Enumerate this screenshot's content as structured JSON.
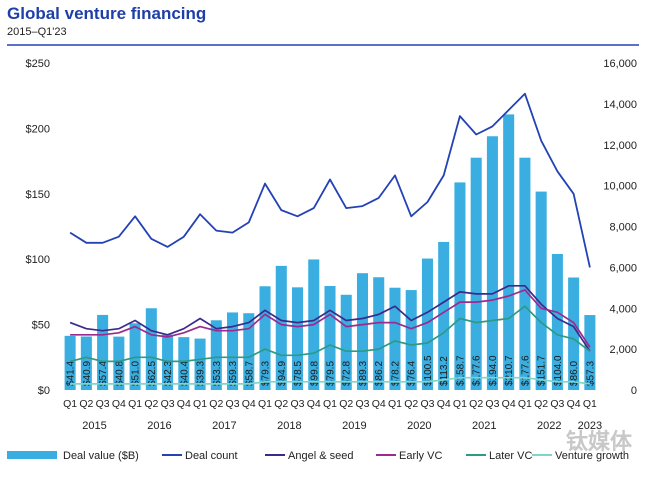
{
  "header": {
    "title": "Global venture financing",
    "subtitle": "2015–Q1'23"
  },
  "watermark": "钛媒体",
  "colors": {
    "title": "#1f3fa8",
    "bars": "#3aaee0",
    "deal_count": "#2342b5",
    "angel_seed": "#3b2a8c",
    "early_vc": "#9b2b8f",
    "later_vc": "#2c9a84",
    "venture_growth": "#7fd6c8",
    "rule": "#2342b5"
  },
  "chart_data": {
    "type": "bar",
    "categories": [
      "Q1",
      "Q2",
      "Q3",
      "Q4",
      "Q1",
      "Q2",
      "Q3",
      "Q4",
      "Q1",
      "Q2",
      "Q3",
      "Q4",
      "Q1",
      "Q2",
      "Q3",
      "Q4",
      "Q1",
      "Q2",
      "Q3",
      "Q4",
      "Q1",
      "Q2",
      "Q3",
      "Q4",
      "Q1",
      "Q2",
      "Q3",
      "Q4",
      "Q1",
      "Q2",
      "Q3",
      "Q4",
      "Q1"
    ],
    "years": [
      {
        "label": "2015",
        "start": 0,
        "end": 3
      },
      {
        "label": "2016",
        "start": 4,
        "end": 7
      },
      {
        "label": "2017",
        "start": 8,
        "end": 11
      },
      {
        "label": "2018",
        "start": 12,
        "end": 15
      },
      {
        "label": "2019",
        "start": 16,
        "end": 19
      },
      {
        "label": "2020",
        "start": 20,
        "end": 23
      },
      {
        "label": "2021",
        "start": 24,
        "end": 27
      },
      {
        "label": "2022",
        "start": 28,
        "end": 31
      },
      {
        "label": "2023",
        "start": 32,
        "end": 32
      }
    ],
    "left_axis": {
      "ylim": [
        0,
        250
      ],
      "ticks": [
        0,
        50,
        100,
        150,
        200,
        250
      ],
      "tick_labels": [
        "$0",
        "$50",
        "$100",
        "$150",
        "$200",
        "$250"
      ]
    },
    "right_axis": {
      "ylim": [
        0,
        16000
      ],
      "ticks": [
        0,
        2000,
        4000,
        6000,
        8000,
        10000,
        12000,
        14000,
        16000
      ],
      "tick_labels": [
        "0",
        "2,000",
        "4,000",
        "6,000",
        "8,000",
        "10,000",
        "12,000",
        "14,000",
        "16,000"
      ]
    },
    "series": [
      {
        "name": "Deal value ($B)",
        "kind": "bar",
        "axis": "left",
        "values": [
          41.4,
          40.9,
          57.4,
          40.8,
          51.0,
          62.5,
          42.3,
          40.4,
          39.3,
          53.3,
          59.3,
          58.7,
          79.3,
          94.9,
          78.5,
          99.8,
          79.5,
          72.8,
          89.3,
          86.2,
          78.2,
          76.4,
          100.5,
          113.2,
          158.7,
          177.6,
          194.0,
          210.7,
          177.6,
          151.7,
          104.0,
          86.0,
          57.3
        ],
        "labels": [
          "$41.4",
          "$40.9",
          "$57.4",
          "$40.8",
          "$51.0",
          "$62.5",
          "$42.3",
          "$40.4",
          "$39.3",
          "$53.3",
          "$59.3",
          "$58.7",
          "$79.3",
          "$94.9",
          "$78.5",
          "$99.8",
          "$79.5",
          "$72.8",
          "$89.3",
          "$86.2",
          "$78.2",
          "$76.4",
          "$100.5",
          "$113.2",
          "$158.7",
          "$177.6",
          "$194.0",
          "$210.7",
          "$177.6",
          "$151.7",
          "$104.0",
          "$86.0",
          "$57.3"
        ]
      },
      {
        "name": "Deal count",
        "kind": "line",
        "axis": "right",
        "values": [
          7700,
          7200,
          7200,
          7500,
          8500,
          7400,
          7000,
          7500,
          8600,
          7800,
          7700,
          8200,
          10100,
          8800,
          8500,
          8900,
          10300,
          8900,
          9000,
          9400,
          10500,
          8500,
          9200,
          10500,
          13400,
          12500,
          12900,
          13700,
          14500,
          12200,
          10700,
          9600,
          6000
        ]
      },
      {
        "name": "Angel & seed",
        "kind": "line",
        "axis": "right",
        "values": [
          3300,
          3000,
          2900,
          3000,
          3400,
          2900,
          2700,
          3000,
          3500,
          3000,
          3100,
          3300,
          3900,
          3400,
          3300,
          3400,
          3900,
          3400,
          3500,
          3700,
          4100,
          3400,
          3800,
          4300,
          4800,
          4700,
          4700,
          5100,
          5100,
          4200,
          3500,
          3100,
          1900
        ]
      },
      {
        "name": "Early VC",
        "kind": "line",
        "axis": "right",
        "values": [
          2700,
          2700,
          2700,
          2800,
          3100,
          2700,
          2600,
          2800,
          3100,
          2900,
          2900,
          3000,
          3700,
          3200,
          3100,
          3200,
          3700,
          3100,
          3200,
          3300,
          3300,
          3000,
          3300,
          3800,
          4300,
          4300,
          4400,
          4600,
          4900,
          4000,
          3800,
          3300,
          2100
        ]
      },
      {
        "name": "Later VC",
        "kind": "line",
        "axis": "right",
        "values": [
          1400,
          1600,
          1400,
          1400,
          1600,
          1600,
          1400,
          1400,
          1500,
          1600,
          1600,
          1600,
          2000,
          1700,
          1700,
          1800,
          2200,
          1900,
          1900,
          2000,
          2400,
          2200,
          2300,
          2800,
          3500,
          3300,
          3400,
          3500,
          4100,
          3300,
          2700,
          2500,
          1900
        ]
      },
      {
        "name": "Venture growth",
        "kind": "line",
        "axis": "right",
        "values": [
          300,
          300,
          300,
          300,
          300,
          300,
          300,
          300,
          300,
          300,
          300,
          300,
          400,
          400,
          400,
          400,
          400,
          400,
          400,
          400,
          400,
          400,
          400,
          500,
          600,
          600,
          600,
          600,
          600,
          500,
          400,
          400,
          300
        ]
      }
    ],
    "legend_position": "bottom",
    "grid": false
  }
}
